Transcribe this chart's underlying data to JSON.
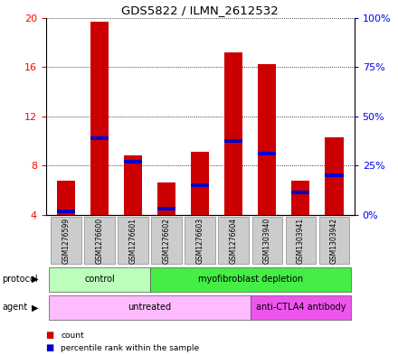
{
  "title": "GDS5822 / ILMN_2612532",
  "samples": [
    "GSM1276599",
    "GSM1276600",
    "GSM1276601",
    "GSM1276602",
    "GSM1276603",
    "GSM1276604",
    "GSM1303940",
    "GSM1303941",
    "GSM1303942"
  ],
  "count_values": [
    6.8,
    19.7,
    8.8,
    6.6,
    9.1,
    17.2,
    16.2,
    6.8,
    10.3
  ],
  "percentile_values": [
    4.3,
    10.2,
    8.3,
    4.5,
    6.4,
    10.0,
    9.0,
    5.8,
    7.2
  ],
  "ymin": 4,
  "ymax": 20,
  "yticks_left": [
    4,
    8,
    12,
    16,
    20
  ],
  "yticks_right": [
    0,
    25,
    50,
    75,
    100
  ],
  "bar_color": "#cc0000",
  "percentile_color": "#0000cc",
  "bar_width": 0.55,
  "protocol_groups": [
    {
      "label": "control",
      "start": 0,
      "end": 2,
      "color": "#bbffbb"
    },
    {
      "label": "myofibroblast depletion",
      "start": 3,
      "end": 8,
      "color": "#44ee44"
    }
  ],
  "agent_groups": [
    {
      "label": "untreated",
      "start": 0,
      "end": 5,
      "color": "#ffbbff"
    },
    {
      "label": "anti-CTLA4 antibody",
      "start": 6,
      "end": 8,
      "color": "#ee55ee"
    }
  ],
  "legend_count_color": "#cc0000",
  "legend_percentile_color": "#0000cc",
  "background_color": "#ffffff",
  "grid_color": "#000000",
  "label_left_protocol": "protocol",
  "label_left_agent": "agent",
  "sample_box_color": "#cccccc"
}
